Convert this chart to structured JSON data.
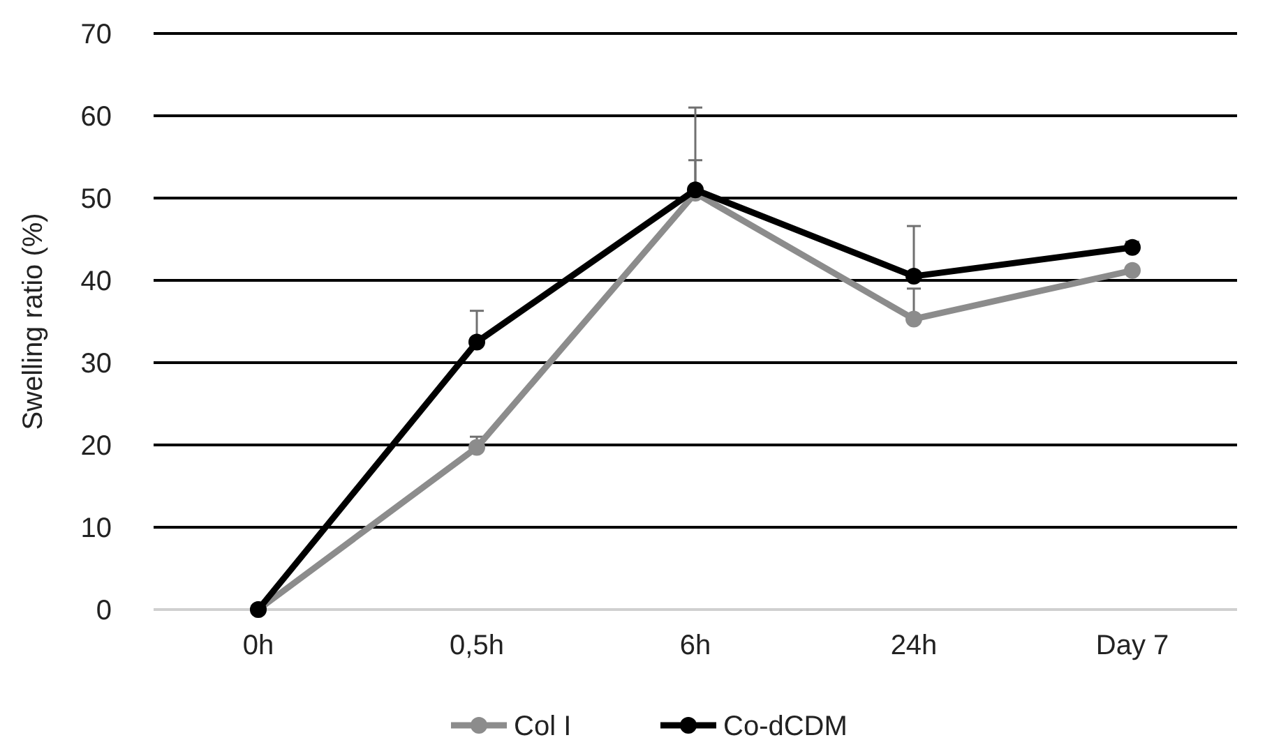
{
  "chart_data": {
    "type": "line",
    "ylabel": "Swelling  ratio (%)",
    "categories": [
      "0h",
      "0,5h",
      "6h",
      "24h",
      "Day 7"
    ],
    "series": [
      {
        "name": "Col I",
        "color": "#8c8c8c",
        "values": [
          0,
          19.7,
          50.6,
          35.3,
          41.2
        ],
        "errors": [
          null,
          [
            19.7,
            21
          ],
          [
            50.6,
            61
          ],
          [
            35.3,
            39
          ],
          null
        ]
      },
      {
        "name": "Co-dCDM",
        "color": "#000000",
        "values": [
          0,
          32.5,
          51,
          40.5,
          44
        ],
        "errors": [
          null,
          [
            32.5,
            36.3
          ],
          [
            51,
            54.6
          ],
          [
            40.5,
            46.6
          ],
          [
            44,
            44.7
          ]
        ]
      }
    ],
    "ylim": [
      0,
      70
    ],
    "yticks": [
      0,
      10,
      20,
      30,
      40,
      50,
      60,
      70
    ],
    "grid": "y",
    "legend": "bottom",
    "marker": "circle",
    "line_style": "solid"
  }
}
